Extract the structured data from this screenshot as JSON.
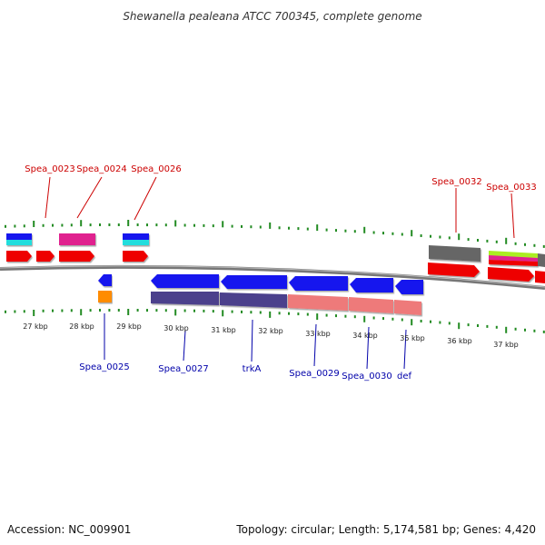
{
  "title": "Shewanella pealeana ATCC 700345, complete genome",
  "footer": {
    "accession": "Accession: NC_009901",
    "summary": "Topology: circular; Length: 5,174,581 bp; Genes: 4,420"
  },
  "colors": {
    "label_forward": "#cc0000",
    "label_reverse": "#0000aa",
    "backbone": "#888888",
    "tick": "#228b22",
    "gene_red": "#ee0000",
    "gene_blue": "#1515ee",
    "gene_cyan": "#22dddd",
    "gene_magenta": "#e0208f",
    "gene_orange": "#ff8c00",
    "gene_purple": "#4b3f8c",
    "gene_pink": "#ee7a7a",
    "gene_gray": "#666666",
    "gene_lime": "#aaee22"
  },
  "kbp_labels": [
    "27 kbp",
    "28 kbp",
    "29 kbp",
    "30 kbp",
    "31 kbp",
    "32 kbp",
    "33 kbp",
    "34 kbp",
    "35 kbp",
    "36 kbp",
    "37 kbp"
  ],
  "forward_gene_labels": [
    "Spea_0023",
    "Spea_0024",
    "Spea_0026",
    "Spea_0032",
    "Spea_0033"
  ],
  "reverse_gene_labels": [
    "Spea_0025",
    "Spea_0027",
    "trkA",
    "Spea_0029",
    "Spea_0030",
    "def"
  ]
}
